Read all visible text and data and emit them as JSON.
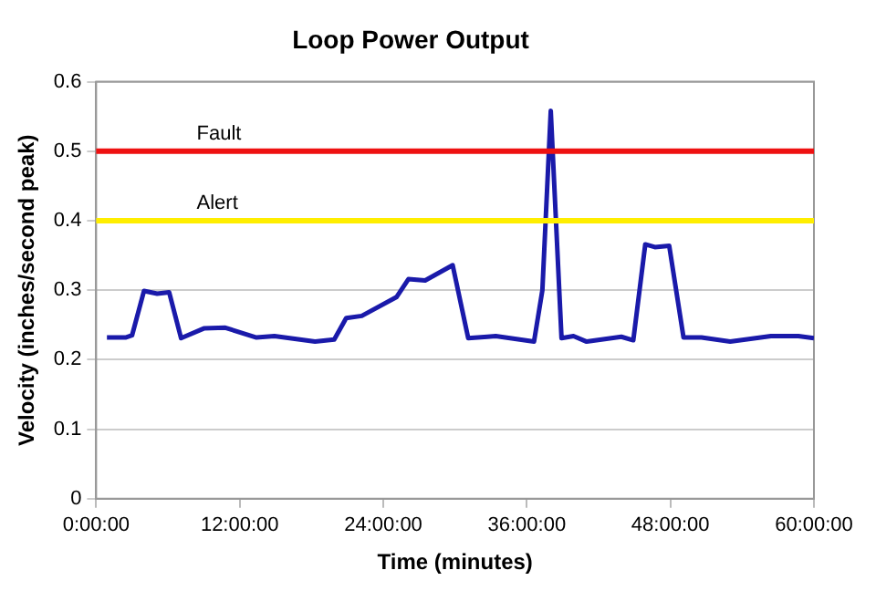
{
  "chart_data": {
    "type": "line",
    "title": "Loop Power Output",
    "xlabel": "Time (minutes)",
    "ylabel": "Velocity (inches/second peak)",
    "series": [
      {
        "color": "#1a1aaa",
        "x": [
          0.9,
          2.45,
          3.0,
          4.0,
          5.1,
          6.1,
          7.1,
          9.0,
          10.8,
          13.4,
          14.9,
          18.3,
          19.9,
          20.9,
          22.2,
          25.1,
          26.1,
          27.5,
          29.8,
          31.1,
          32.7,
          33.4,
          36.6,
          37.3,
          38.0,
          38.9,
          39.9,
          41.0,
          43.9,
          44.9,
          45.9,
          46.7,
          47.9,
          49.1,
          50.6,
          53.0,
          56.4,
          58.7,
          60.0
        ],
        "values": [
          0.232,
          0.232,
          0.235,
          0.299,
          0.295,
          0.297,
          0.231,
          0.245,
          0.246,
          0.232,
          0.234,
          0.226,
          0.229,
          0.26,
          0.263,
          0.29,
          0.316,
          0.314,
          0.336,
          0.231,
          0.233,
          0.234,
          0.226,
          0.3,
          0.558,
          0.231,
          0.234,
          0.226,
          0.233,
          0.228,
          0.366,
          0.362,
          0.364,
          0.232,
          0.232,
          0.226,
          0.234,
          0.234,
          0.231
        ]
      }
    ],
    "xlim": [
      0,
      60
    ],
    "xticks": [
      {
        "value": 0,
        "label": "0:00:00"
      },
      {
        "value": 12,
        "label": "12:00:00"
      },
      {
        "value": 24,
        "label": "24:00:00"
      },
      {
        "value": 36,
        "label": "36:00:00"
      },
      {
        "value": 48,
        "label": "48:00:00"
      },
      {
        "value": 60,
        "label": "60:00:00"
      }
    ],
    "ylim": [
      0,
      0.6
    ],
    "yticks": [
      0,
      0.1,
      0.2,
      0.3,
      0.4,
      0.5,
      0.6
    ],
    "ref_lines": [
      {
        "axis": "y",
        "value": 0.5,
        "label": "Fault",
        "color": "#ee1111"
      },
      {
        "axis": "y",
        "value": 0.4,
        "label": "Alert",
        "color": "#ffee00"
      }
    ],
    "grid": "y",
    "legend": false,
    "marker": "none",
    "line_style": "solid"
  }
}
